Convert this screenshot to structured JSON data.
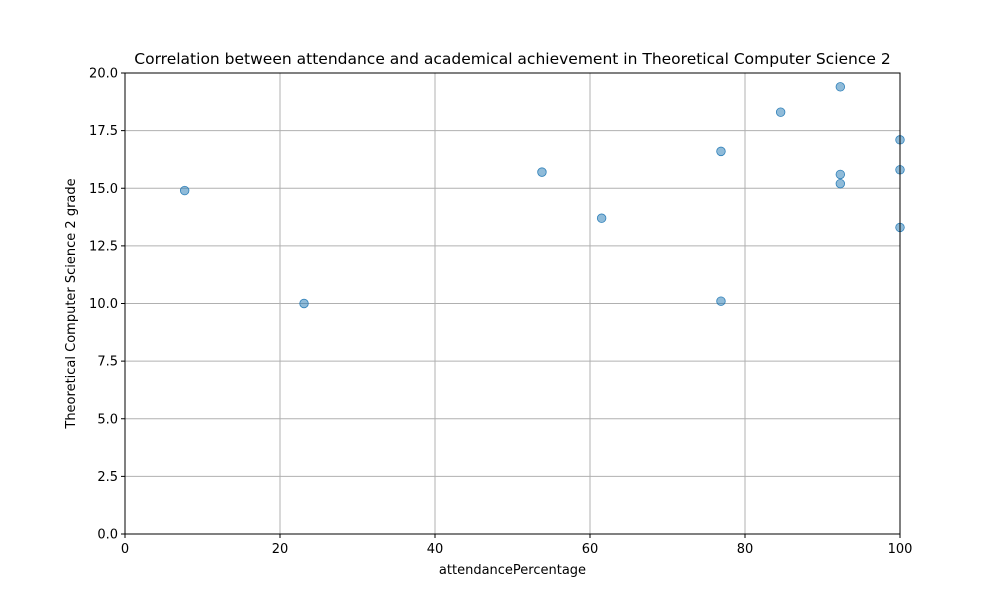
{
  "chart_data": {
    "type": "scatter",
    "title": "Correlation between attendance and academical achievement in Theoretical Computer Science 2",
    "xlabel": "attendancePercentage",
    "ylabel": "Theoretical Computer Science 2 grade",
    "xlim": [
      0,
      100
    ],
    "ylim": [
      0,
      20
    ],
    "xticks": [
      0,
      20,
      40,
      60,
      80,
      100
    ],
    "yticks": [
      0.0,
      2.5,
      5.0,
      7.5,
      10.0,
      12.5,
      15.0,
      17.5,
      20.0
    ],
    "xtick_labels": [
      "0",
      "20",
      "40",
      "60",
      "80",
      "100"
    ],
    "ytick_labels": [
      "0.0",
      "2.5",
      "5.0",
      "7.5",
      "10.0",
      "12.5",
      "15.0",
      "17.5",
      "20.0"
    ],
    "grid": true,
    "marker_color": "#1f77b4",
    "marker_alpha": 0.5,
    "points": [
      {
        "x": 7.7,
        "y": 14.9
      },
      {
        "x": 23.1,
        "y": 10.0
      },
      {
        "x": 53.8,
        "y": 15.7
      },
      {
        "x": 61.5,
        "y": 13.7
      },
      {
        "x": 76.9,
        "y": 16.6
      },
      {
        "x": 76.9,
        "y": 10.1
      },
      {
        "x": 84.6,
        "y": 18.3
      },
      {
        "x": 92.3,
        "y": 19.4
      },
      {
        "x": 92.3,
        "y": 15.6
      },
      {
        "x": 92.3,
        "y": 15.2
      },
      {
        "x": 100,
        "y": 17.1
      },
      {
        "x": 100,
        "y": 15.8
      },
      {
        "x": 100,
        "y": 13.3
      }
    ]
  }
}
